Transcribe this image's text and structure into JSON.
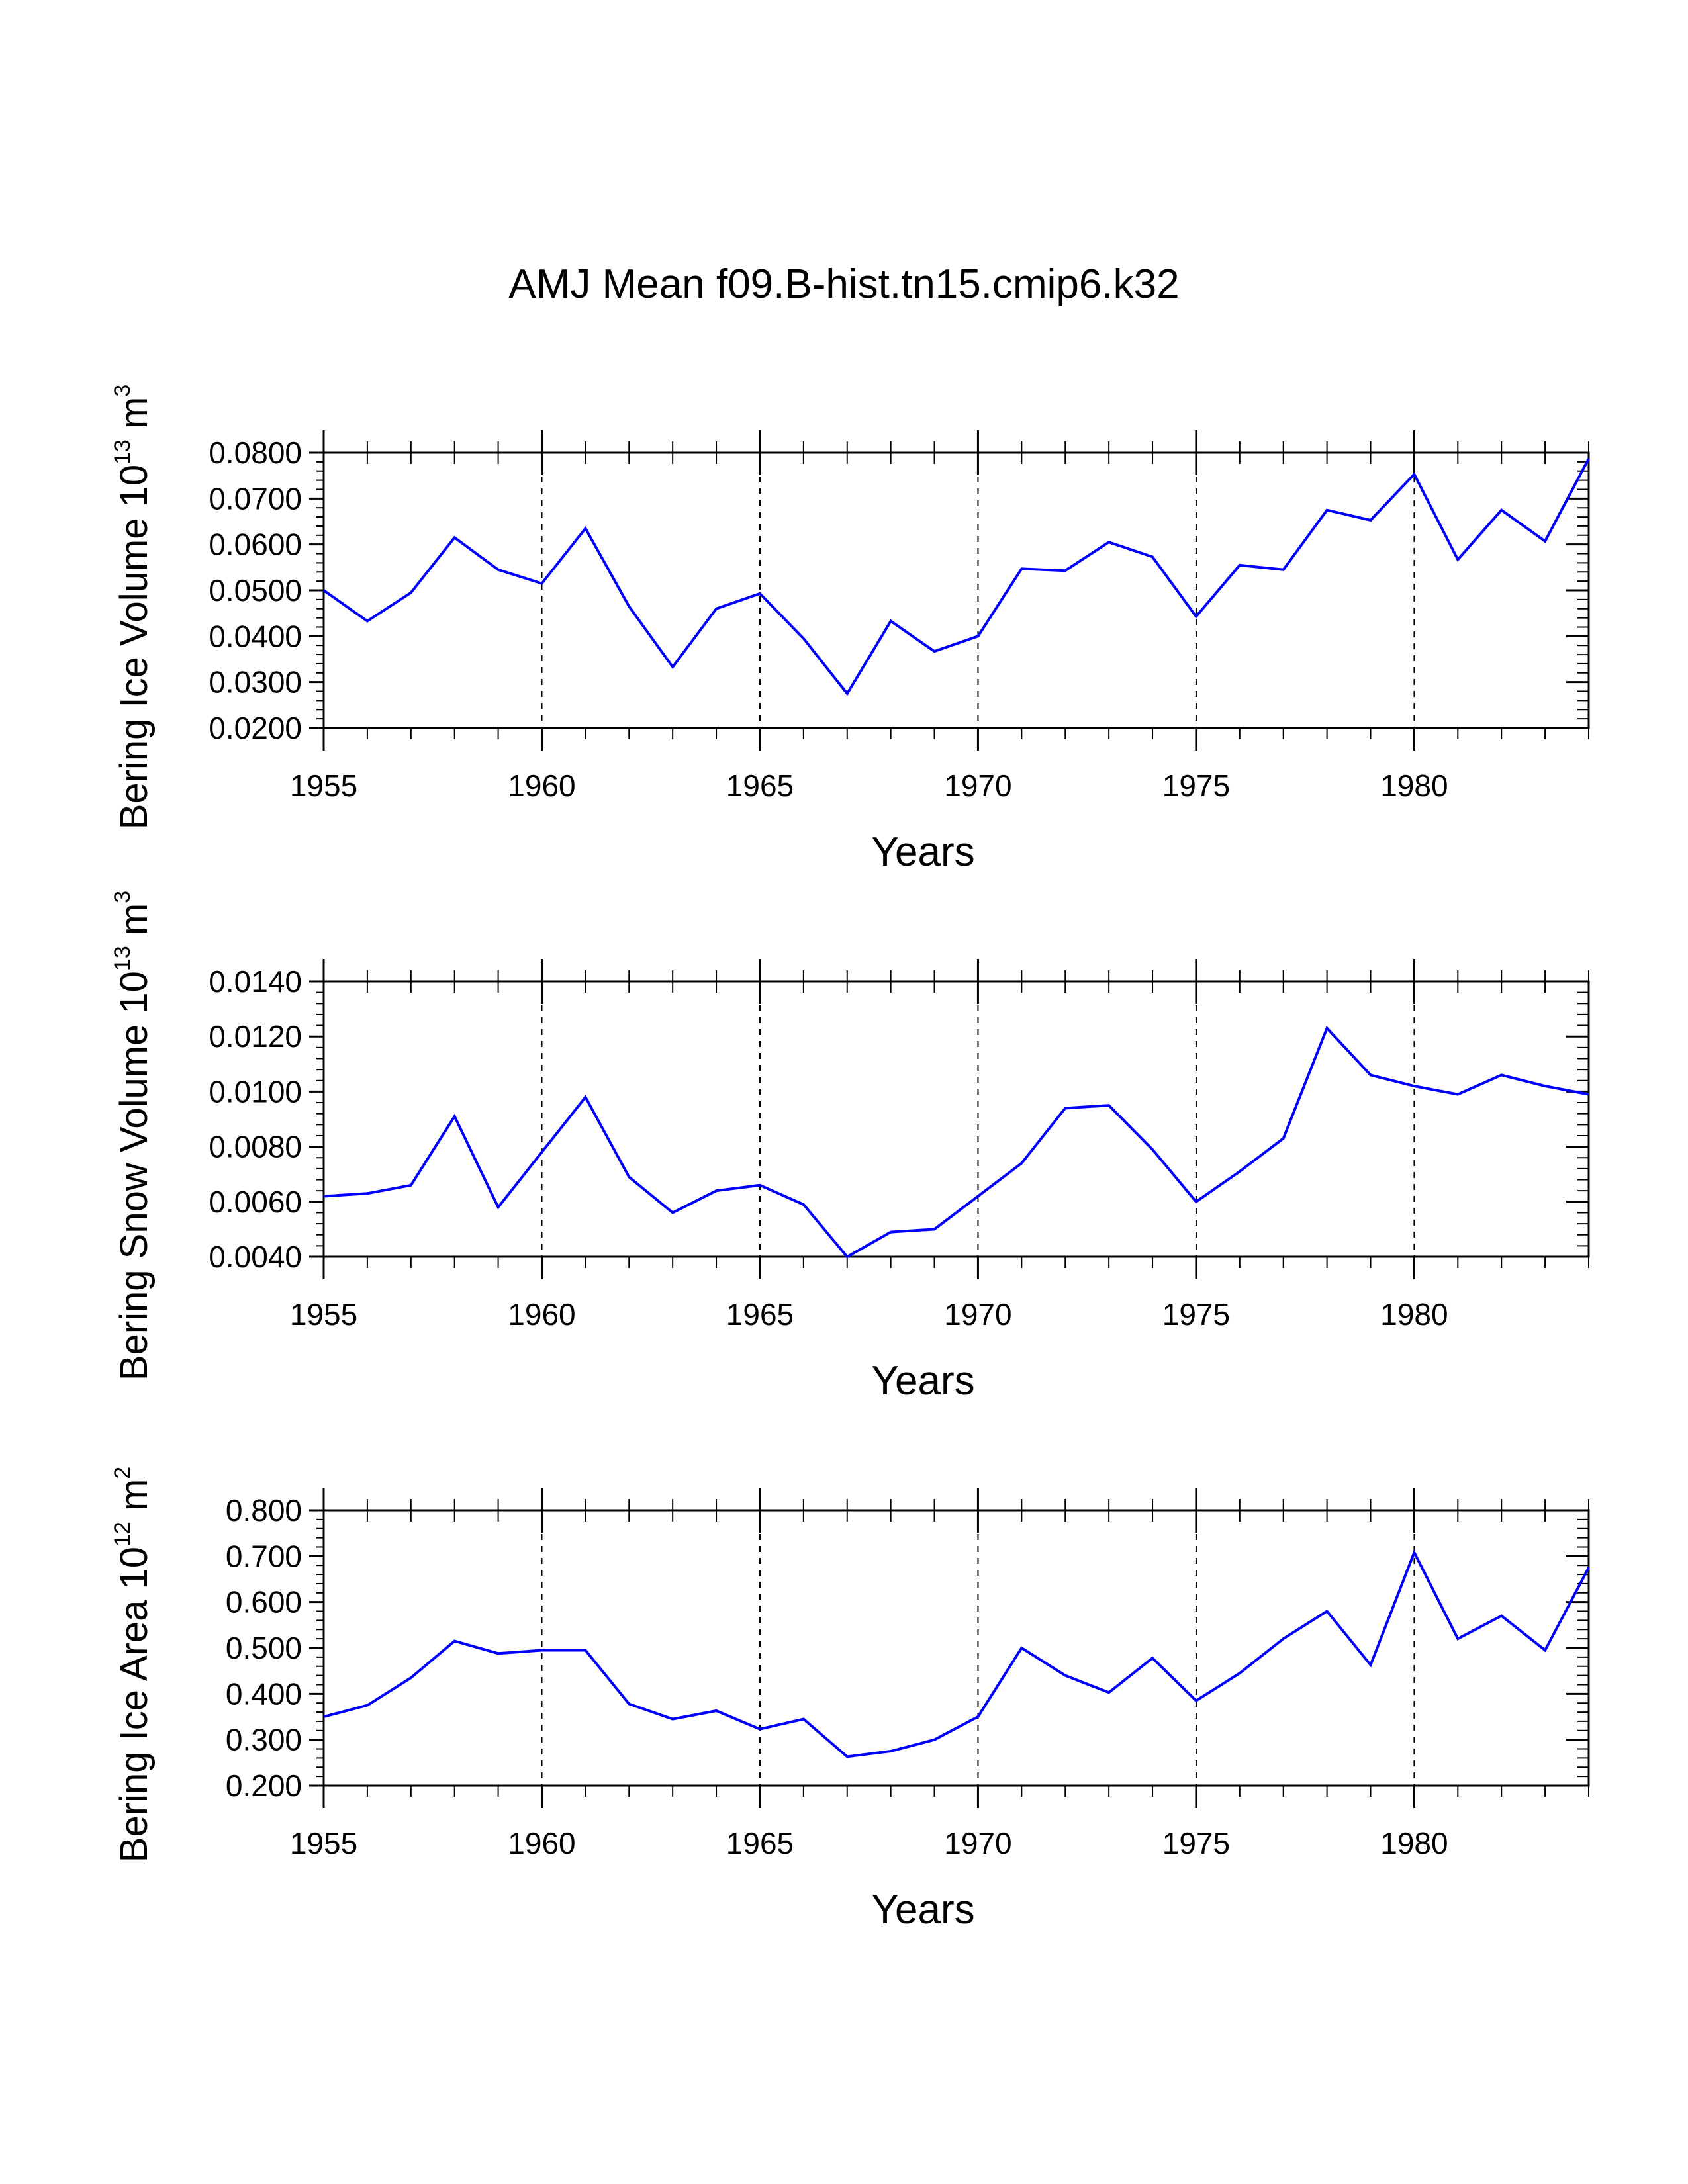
{
  "title": "AMJ Mean f09.B-hist.tn15.cmip6.k32",
  "colors": {
    "series": "#0000ff",
    "axis": "#000000",
    "grid": "#000000",
    "background": "#ffffff"
  },
  "chart_data": [
    {
      "type": "line",
      "title": "AMJ Mean f09.B-hist.tn15.cmip6.k32",
      "ylabel": {
        "text": "Bering Ice Volume 10",
        "exponent": "13",
        "unit": " m",
        "unit_exponent": "3"
      },
      "xlabel": "Years",
      "xlim": [
        1955,
        1984
      ],
      "ylim": [
        0.02,
        0.08
      ],
      "xticks": [
        1955,
        1960,
        1965,
        1970,
        1975,
        1980
      ],
      "yticks": [
        "0.0200",
        "0.0300",
        "0.0400",
        "0.0500",
        "0.0600",
        "0.0700",
        "0.0800"
      ],
      "ytick_values": [
        0.02,
        0.03,
        0.04,
        0.05,
        0.06,
        0.07,
        0.08
      ],
      "grid_x": [
        1960,
        1965,
        1970,
        1975,
        1980
      ],
      "series": [
        {
          "name": "Bering Ice Volume",
          "x": [
            1955,
            1956,
            1957,
            1958,
            1959,
            1960,
            1961,
            1962,
            1963,
            1964,
            1965,
            1966,
            1967,
            1968,
            1969,
            1970,
            1971,
            1972,
            1973,
            1974,
            1975,
            1976,
            1977,
            1978,
            1979,
            1980,
            1981,
            1982,
            1983,
            1984
          ],
          "values": [
            0.05,
            0.0433,
            0.0495,
            0.0615,
            0.0545,
            0.0515,
            0.0635,
            0.0465,
            0.0333,
            0.046,
            0.0493,
            0.0395,
            0.0275,
            0.0433,
            0.0367,
            0.04,
            0.0547,
            0.0543,
            0.0605,
            0.0573,
            0.0443,
            0.0555,
            0.0545,
            0.0675,
            0.0653,
            0.0753,
            0.0567,
            0.0675,
            0.0607,
            0.0787
          ]
        }
      ]
    },
    {
      "type": "line",
      "ylabel": {
        "text": "Bering Snow Volume 10",
        "exponent": "13",
        "unit": " m",
        "unit_exponent": "3"
      },
      "xlabel": "Years",
      "xlim": [
        1955,
        1984
      ],
      "ylim": [
        0.004,
        0.014
      ],
      "xticks": [
        1955,
        1960,
        1965,
        1970,
        1975,
        1980
      ],
      "yticks": [
        "0.0040",
        "0.0060",
        "0.0080",
        "0.0100",
        "0.0120",
        "0.0140"
      ],
      "ytick_values": [
        0.004,
        0.006,
        0.008,
        0.01,
        0.012,
        0.014
      ],
      "grid_x": [
        1960,
        1965,
        1970,
        1975,
        1980
      ],
      "series": [
        {
          "name": "Bering Snow Volume",
          "x": [
            1955,
            1956,
            1957,
            1958,
            1959,
            1960,
            1961,
            1962,
            1963,
            1964,
            1965,
            1966,
            1967,
            1968,
            1969,
            1970,
            1971,
            1972,
            1973,
            1974,
            1975,
            1976,
            1977,
            1978,
            1979,
            1980,
            1981,
            1982,
            1983,
            1984
          ],
          "values": [
            0.0062,
            0.0063,
            0.0066,
            0.0091,
            0.0058,
            0.0078,
            0.0098,
            0.0069,
            0.0056,
            0.0064,
            0.0066,
            0.0059,
            0.004,
            0.0049,
            0.005,
            0.0062,
            0.0074,
            0.0094,
            0.0095,
            0.0079,
            0.006,
            0.0071,
            0.0083,
            0.0123,
            0.0106,
            0.0102,
            0.0099,
            0.0106,
            0.0102,
            0.0099
          ]
        }
      ]
    },
    {
      "type": "line",
      "ylabel": {
        "text": "Bering Ice Area 10",
        "exponent": "12",
        "unit": " m",
        "unit_exponent": "2"
      },
      "xlabel": "Years",
      "xlim": [
        1955,
        1984
      ],
      "ylim": [
        0.2,
        0.8
      ],
      "xticks": [
        1955,
        1960,
        1965,
        1970,
        1975,
        1980
      ],
      "yticks": [
        "0.200",
        "0.300",
        "0.400",
        "0.500",
        "0.600",
        "0.700",
        "0.800"
      ],
      "ytick_values": [
        0.2,
        0.3,
        0.4,
        0.5,
        0.6,
        0.7,
        0.8
      ],
      "grid_x": [
        1960,
        1965,
        1970,
        1975,
        1980
      ],
      "series": [
        {
          "name": "Bering Ice Area",
          "x": [
            1955,
            1956,
            1957,
            1958,
            1959,
            1960,
            1961,
            1962,
            1963,
            1964,
            1965,
            1966,
            1967,
            1968,
            1969,
            1970,
            1971,
            1972,
            1973,
            1974,
            1975,
            1976,
            1977,
            1978,
            1979,
            1980,
            1981,
            1982,
            1983,
            1984
          ],
          "values": [
            0.35,
            0.375,
            0.435,
            0.515,
            0.488,
            0.495,
            0.495,
            0.378,
            0.345,
            0.363,
            0.323,
            0.345,
            0.263,
            0.275,
            0.3,
            0.35,
            0.5,
            0.44,
            0.403,
            0.478,
            0.385,
            0.445,
            0.52,
            0.58,
            0.463,
            0.708,
            0.52,
            0.57,
            0.495,
            0.675
          ]
        }
      ]
    }
  ]
}
